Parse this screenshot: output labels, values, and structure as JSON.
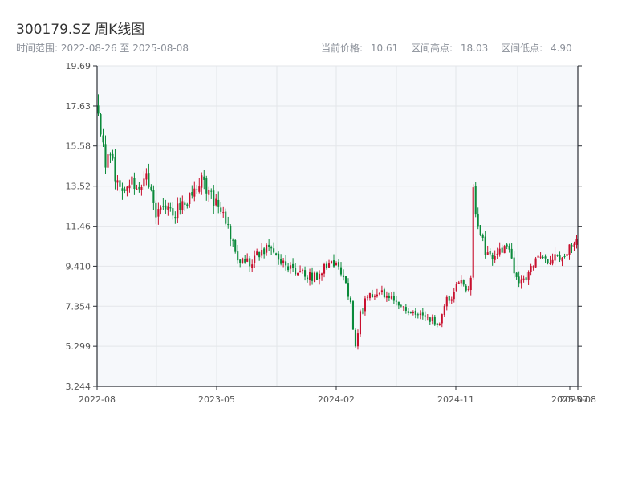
{
  "header": {
    "title": "300179.SZ 周K线图",
    "range_label": "时间范围: ",
    "range_start": "2022-08-26",
    "range_sep": " 至 ",
    "range_end": "2025-08-08",
    "current_price_label": "当前价格: ",
    "current_price": "10.61",
    "high_label": "区间高点: ",
    "high": "18.03",
    "low_label": "区间低点: ",
    "low": "4.90"
  },
  "colors": {
    "up": "#c8102e",
    "down": "#0a8a3a",
    "plot_bg": "#f6f8fb",
    "grid": "#e3e6ea",
    "axis": "#2b2f36"
  },
  "chart_data": {
    "type": "candlestick",
    "title": "300179.SZ 周K线图",
    "ylim": [
      3.244,
      19.69
    ],
    "y_ticks": [
      "3.244",
      "5.299",
      "7.354",
      "9.410",
      "11.46",
      "13.52",
      "15.58",
      "17.63",
      "19.69"
    ],
    "x_ticks": [
      "2022-08",
      "2023-05",
      "2024-02",
      "2024-11",
      "2025-07",
      "2025-08"
    ],
    "grid": true,
    "close_path": [
      [
        0,
        17.4
      ],
      [
        3,
        14.6
      ],
      [
        5,
        15.0
      ],
      [
        9,
        13.4
      ],
      [
        13,
        13.9
      ],
      [
        17,
        13.3
      ],
      [
        20,
        13.8
      ],
      [
        24,
        12.1
      ],
      [
        27,
        12.8
      ],
      [
        31,
        12.0
      ],
      [
        35,
        12.6
      ],
      [
        39,
        13.0
      ],
      [
        43,
        13.9
      ],
      [
        46,
        13.1
      ],
      [
        50,
        12.7
      ],
      [
        53,
        11.6
      ],
      [
        56,
        10.8
      ],
      [
        59,
        9.5
      ],
      [
        62,
        9.6
      ],
      [
        66,
        9.9
      ],
      [
        70,
        10.2
      ],
      [
        74,
        9.9
      ],
      [
        77,
        9.6
      ],
      [
        81,
        9.3
      ],
      [
        85,
        9.1
      ],
      [
        89,
        8.9
      ],
      [
        92,
        9.0
      ],
      [
        95,
        9.4
      ],
      [
        97,
        9.8
      ],
      [
        100,
        9.3
      ],
      [
        103,
        8.4
      ],
      [
        105,
        7.6
      ],
      [
        106,
        6.2
      ],
      [
        107,
        5.2
      ],
      [
        109,
        6.9
      ],
      [
        112,
        7.9
      ],
      [
        116,
        8.1
      ],
      [
        120,
        7.8
      ],
      [
        124,
        7.6
      ],
      [
        128,
        7.2
      ],
      [
        131,
        7.0
      ],
      [
        135,
        6.7
      ],
      [
        139,
        6.6
      ],
      [
        142,
        6.5
      ],
      [
        144,
        7.5
      ],
      [
        147,
        7.9
      ],
      [
        149,
        8.6
      ],
      [
        152,
        8.5
      ],
      [
        154,
        8.2
      ],
      [
        155,
        9.0
      ],
      [
        156,
        13.4
      ],
      [
        157,
        12.4
      ],
      [
        159,
        11.0
      ],
      [
        161,
        10.2
      ],
      [
        164,
        9.6
      ],
      [
        167,
        10.2
      ],
      [
        170,
        10.4
      ],
      [
        172,
        9.6
      ],
      [
        173,
        9.3
      ],
      [
        175,
        8.4
      ],
      [
        178,
        8.9
      ],
      [
        181,
        9.4
      ],
      [
        184,
        9.8
      ],
      [
        188,
        9.7
      ],
      [
        191,
        9.9
      ],
      [
        194,
        10.1
      ],
      [
        197,
        10.3
      ],
      [
        199,
        10.61
      ]
    ],
    "candle_count": 200,
    "seed": 179
  }
}
